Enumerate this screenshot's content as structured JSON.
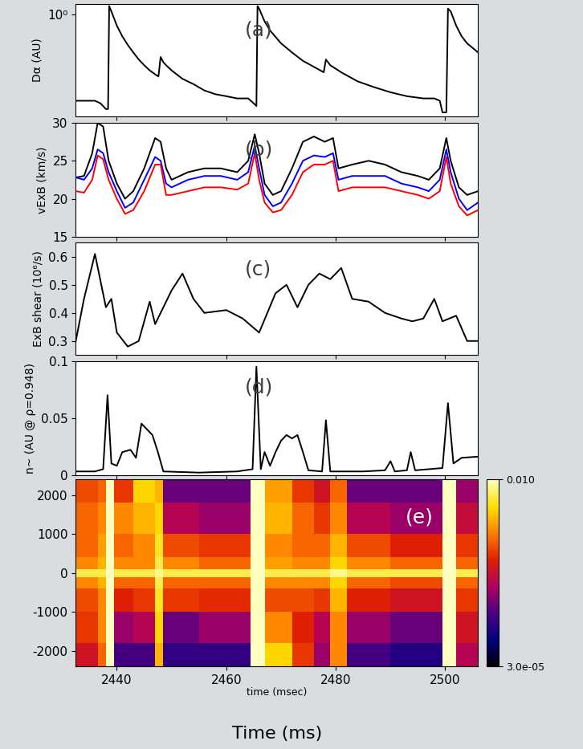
{
  "chart_data": [
    {
      "type": "line",
      "annotation": "(a)",
      "ylabel": "Dα (AU)",
      "log": "y",
      "tick_labels": "y",
      "xlim": [
        2432.5,
        2506
      ],
      "xticks": [
        2440,
        2460,
        2480,
        2500
      ],
      "ylim": [
        0.04,
        1.4
      ],
      "yticks": [
        {
          "value": 1,
          "label": "10⁰"
        }
      ],
      "x": [
        2432.5,
        2436,
        2437,
        2438,
        2438.4,
        2438.6,
        2439,
        2440,
        2441,
        2442,
        2443,
        2444,
        2445,
        2446,
        2447,
        2447.6,
        2448,
        2448.5,
        2449,
        2450,
        2452,
        2454,
        2456,
        2458,
        2460,
        2462,
        2464,
        2465,
        2465.5,
        2465.7,
        2466,
        2467,
        2468,
        2470,
        2472,
        2474,
        2476,
        2477.8,
        2478.2,
        2479,
        2481,
        2484,
        2487,
        2490,
        2493,
        2496,
        2498,
        2499,
        2499.5,
        2500.2,
        2500.5,
        2501,
        2502,
        2503,
        2504,
        2506
      ],
      "series": [
        {
          "color": "#000000",
          "values": [
            0.065,
            0.065,
            0.06,
            0.05,
            0.05,
            1.3,
            1.1,
            0.7,
            0.5,
            0.38,
            0.3,
            0.24,
            0.2,
            0.17,
            0.15,
            0.14,
            0.26,
            0.22,
            0.2,
            0.17,
            0.13,
            0.11,
            0.09,
            0.08,
            0.075,
            0.07,
            0.07,
            0.06,
            0.055,
            1.3,
            1.2,
            0.8,
            0.6,
            0.4,
            0.3,
            0.23,
            0.19,
            0.16,
            0.24,
            0.2,
            0.16,
            0.12,
            0.1,
            0.085,
            0.075,
            0.07,
            0.07,
            0.065,
            0.045,
            0.045,
            1.2,
            1.1,
            0.7,
            0.5,
            0.4,
            0.3
          ]
        }
      ]
    },
    {
      "type": "line",
      "annotation": "(b)",
      "ylabel": "vExB (km/s)",
      "tick_labels": "y",
      "xlim": [
        2432.5,
        2506
      ],
      "xticks": [
        2440,
        2460,
        2480,
        2500
      ],
      "ylim": [
        15,
        30
      ],
      "yticks": [
        15,
        20,
        25,
        30
      ],
      "x": [
        2432.5,
        2434,
        2435.5,
        2436.5,
        2437.5,
        2438.5,
        2440,
        2441.5,
        2443,
        2445,
        2447,
        2448,
        2449,
        2450,
        2453,
        2456,
        2459,
        2462,
        2464,
        2465.2,
        2466,
        2467,
        2468.5,
        2470,
        2472,
        2474,
        2476,
        2478,
        2479.5,
        2480.5,
        2483,
        2486,
        2489,
        2492,
        2495,
        2497,
        2499,
        2500.2,
        2501,
        2502.5,
        2504,
        2506
      ],
      "series": [
        {
          "color": "#000000",
          "values": [
            22.8,
            23,
            26,
            30,
            29.5,
            25,
            22,
            20,
            21,
            24,
            28,
            27.5,
            24,
            22.5,
            23.5,
            24,
            24,
            23.5,
            25,
            28.5,
            26,
            22,
            20.5,
            21,
            24,
            27.5,
            28.2,
            27.5,
            28,
            24,
            24.5,
            25,
            24.5,
            23.5,
            23,
            22.5,
            24,
            28,
            25,
            21.5,
            20.5,
            21
          ]
        },
        {
          "color": "#0000ff",
          "values": [
            22.8,
            22.5,
            24,
            26.5,
            26,
            23.5,
            21,
            18.8,
            19.5,
            22.5,
            25.5,
            25,
            22,
            21.5,
            22.5,
            23,
            23,
            22.5,
            23.5,
            27,
            24,
            20.5,
            19,
            19.5,
            22,
            25,
            25.7,
            25.5,
            26,
            22.5,
            23,
            23,
            23,
            22,
            21.5,
            21,
            22.5,
            26.5,
            23.5,
            20,
            18.5,
            19.5
          ]
        },
        {
          "color": "#ff0000",
          "values": [
            21,
            20.8,
            22.5,
            25.7,
            25.2,
            22.5,
            20,
            18,
            18.5,
            21,
            24.5,
            24.5,
            20.5,
            20.5,
            21,
            21.5,
            21.5,
            21.2,
            22,
            26,
            22.5,
            19.5,
            18.2,
            18.5,
            20.5,
            23.5,
            24.5,
            24.5,
            25,
            21,
            21.5,
            21.5,
            21.5,
            21,
            20.5,
            20,
            21,
            25.5,
            22,
            19,
            17.8,
            18.5
          ]
        }
      ]
    },
    {
      "type": "line",
      "annotation": "(c)",
      "ylabel": "ExB shear (10⁶/s)",
      "tick_labels": "y",
      "xlim": [
        2432.5,
        2506
      ],
      "xticks": [
        2440,
        2460,
        2480,
        2500
      ],
      "ylim": [
        0.25,
        0.65
      ],
      "yticks": [
        0.3,
        0.4,
        0.5,
        0.6
      ],
      "x": [
        2432.5,
        2434,
        2436,
        2438,
        2439,
        2440,
        2442,
        2444,
        2446,
        2447,
        2450,
        2452,
        2454,
        2456,
        2460,
        2463,
        2466,
        2469,
        2471,
        2473,
        2475,
        2477,
        2479,
        2481,
        2483,
        2486,
        2489,
        2492,
        2494,
        2496,
        2498,
        2499.5,
        2502,
        2504,
        2506
      ],
      "series": [
        {
          "color": "#000000",
          "values": [
            0.3,
            0.45,
            0.61,
            0.42,
            0.45,
            0.33,
            0.28,
            0.3,
            0.44,
            0.36,
            0.48,
            0.54,
            0.45,
            0.4,
            0.41,
            0.38,
            0.33,
            0.47,
            0.5,
            0.42,
            0.5,
            0.54,
            0.52,
            0.56,
            0.45,
            0.44,
            0.4,
            0.38,
            0.37,
            0.38,
            0.45,
            0.37,
            0.39,
            0.3,
            0.3
          ]
        }
      ]
    },
    {
      "type": "line",
      "annotation": "(d)",
      "ylabel": "n~ (AU @ ρ=0.948)",
      "tick_labels": "y",
      "xlim": [
        2432.5,
        2506
      ],
      "xticks": [
        2440,
        2460,
        2480,
        2500
      ],
      "ylim": [
        0,
        0.1
      ],
      "yticks": [
        0,
        0.05,
        0.1
      ],
      "x": [
        2432.5,
        2436,
        2437.5,
        2438.3,
        2439,
        2440,
        2441,
        2442.5,
        2443.5,
        2444.5,
        2445.5,
        2446.5,
        2447.5,
        2448.5,
        2455,
        2462,
        2464.8,
        2465.5,
        2466.3,
        2467,
        2468,
        2469,
        2470,
        2471,
        2472,
        2473,
        2474,
        2475,
        2477.5,
        2478.2,
        2479,
        2485,
        2489,
        2490,
        2490.8,
        2493,
        2493.7,
        2494.5,
        2499.5,
        2500.5,
        2501.5,
        2503,
        2506
      ],
      "series": [
        {
          "color": "#000000",
          "values": [
            0.003,
            0.003,
            0.005,
            0.07,
            0.01,
            0.008,
            0.02,
            0.022,
            0.015,
            0.045,
            0.04,
            0.035,
            0.02,
            0.003,
            0.002,
            0.003,
            0.005,
            0.095,
            0.005,
            0.02,
            0.008,
            0.02,
            0.03,
            0.035,
            0.032,
            0.035,
            0.02,
            0.004,
            0.003,
            0.048,
            0.003,
            0.003,
            0.004,
            0.012,
            0.003,
            0.004,
            0.02,
            0.004,
            0.006,
            0.063,
            0.01,
            0.015,
            0.016
          ]
        }
      ]
    },
    {
      "type": "heatmap",
      "annotation": "(e)",
      "xlabel": "time (msec)",
      "figure_xlabel": "Time (ms)",
      "xlim": [
        2432.5,
        2506
      ],
      "xticks": [
        2440,
        2460,
        2480,
        2500
      ],
      "ylim": [
        -2400,
        2400
      ],
      "yticks": [
        -2000,
        -1000,
        0,
        1000,
        2000
      ],
      "x_edges": [
        2432.5,
        2436.5,
        2438,
        2439.5,
        2443,
        2447,
        2448.5,
        2455,
        2464.5,
        2467,
        2472,
        2476,
        2479,
        2482,
        2490,
        2499.5,
        2502,
        2506
      ],
      "y_edges": [
        -2400,
        -1800,
        -1000,
        -400,
        -100,
        100,
        400,
        1000,
        1800,
        2400
      ],
      "values": [
        [
          0.0006,
          0.0015,
          0.01,
          0.00015,
          0.00015,
          0.003,
          0.00012,
          0.00012,
          0.01,
          0.004,
          0.001,
          0.0003,
          0.002,
          0.00015,
          0.0001,
          0.01,
          0.0004
        ],
        [
          0.001,
          0.002,
          0.01,
          0.0003,
          0.0004,
          0.004,
          0.0002,
          0.0003,
          0.01,
          0.002,
          0.0008,
          0.0004,
          0.002,
          0.0003,
          0.0002,
          0.01,
          0.0006
        ],
        [
          0.0012,
          0.002,
          0.01,
          0.0008,
          0.001,
          0.005,
          0.001,
          0.0009,
          0.01,
          0.0012,
          0.0012,
          0.001,
          0.003,
          0.0008,
          0.0006,
          0.01,
          0.001
        ],
        [
          0.002,
          0.003,
          0.01,
          0.0015,
          0.0015,
          0.006,
          0.0015,
          0.0015,
          0.01,
          0.002,
          0.002,
          0.002,
          0.004,
          0.0015,
          0.0012,
          0.01,
          0.0015
        ],
        [
          0.006,
          0.006,
          0.01,
          0.006,
          0.006,
          0.008,
          0.006,
          0.006,
          0.01,
          0.006,
          0.006,
          0.006,
          0.008,
          0.006,
          0.006,
          0.01,
          0.006
        ],
        [
          0.002,
          0.003,
          0.01,
          0.002,
          0.002,
          0.006,
          0.002,
          0.0015,
          0.01,
          0.0025,
          0.002,
          0.002,
          0.004,
          0.002,
          0.0015,
          0.01,
          0.0015
        ],
        [
          0.0015,
          0.0025,
          0.01,
          0.0015,
          0.002,
          0.005,
          0.0012,
          0.001,
          0.01,
          0.002,
          0.0015,
          0.0015,
          0.003,
          0.0012,
          0.0008,
          0.01,
          0.001
        ],
        [
          0.0015,
          0.002,
          0.01,
          0.002,
          0.003,
          0.004,
          0.0004,
          0.0003,
          0.01,
          0.003,
          0.0015,
          0.001,
          0.002,
          0.0004,
          0.0003,
          0.01,
          0.0005
        ],
        [
          0.0012,
          0.0015,
          0.01,
          0.001,
          0.004,
          0.003,
          0.0002,
          0.0002,
          0.01,
          0.0025,
          0.001,
          0.0006,
          0.0015,
          0.0002,
          0.0002,
          0.01,
          0.0003
        ]
      ],
      "colorbar": {
        "range": [
          3e-05,
          0.01
        ],
        "ticks": [
          {
            "value": 3e-05,
            "label": "3.0e-05"
          },
          {
            "value": 0.01,
            "label": "0.010"
          }
        ]
      }
    }
  ]
}
